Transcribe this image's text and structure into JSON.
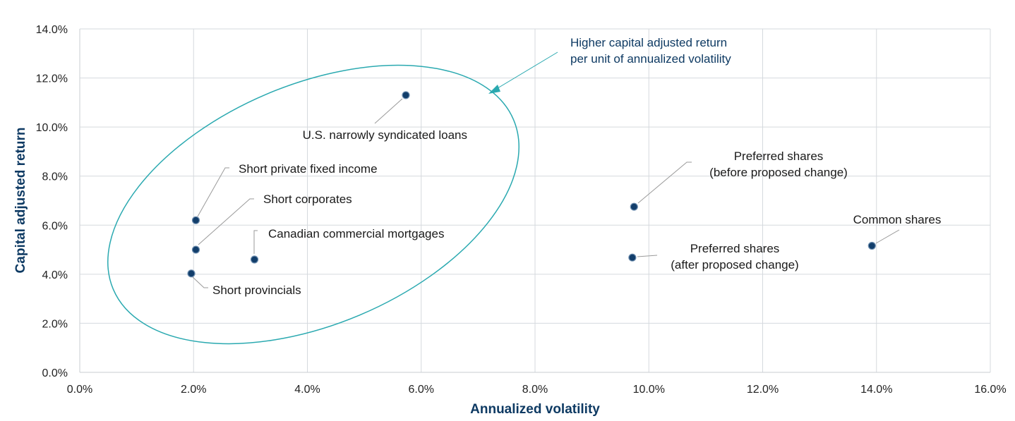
{
  "chart_data": {
    "type": "scatter",
    "xlabel": "Annualized volatility",
    "ylabel": "Capital adjusted return",
    "xlim": [
      0,
      16
    ],
    "ylim": [
      0,
      14
    ],
    "x_ticks": [
      {
        "v": 0,
        "label": "0.0%"
      },
      {
        "v": 2,
        "label": "2.0%"
      },
      {
        "v": 4,
        "label": "4.0%"
      },
      {
        "v": 6,
        "label": "6.0%"
      },
      {
        "v": 8,
        "label": "8.0%"
      },
      {
        "v": 10,
        "label": "10.0%"
      },
      {
        "v": 12,
        "label": "12.0%"
      },
      {
        "v": 14,
        "label": "14.0%"
      },
      {
        "v": 16,
        "label": "16.0%"
      }
    ],
    "y_ticks": [
      {
        "v": 0,
        "label": "0.0%"
      },
      {
        "v": 2,
        "label": "2.0%"
      },
      {
        "v": 4,
        "label": "4.0%"
      },
      {
        "v": 6,
        "label": "6.0%"
      },
      {
        "v": 8,
        "label": "8.0%"
      },
      {
        "v": 10,
        "label": "10.0%"
      },
      {
        "v": 12,
        "label": "12.0%"
      },
      {
        "v": 14,
        "label": "14.0%"
      }
    ],
    "grid": true,
    "points": [
      {
        "label": [
          "U.S. narrowly syndicated loans"
        ],
        "x": 5.73,
        "y": 11.3
      },
      {
        "label": [
          "Short private fixed income"
        ],
        "x": 2.04,
        "y": 6.2
      },
      {
        "label": [
          "Short corporates"
        ],
        "x": 2.04,
        "y": 5.0
      },
      {
        "label": [
          "Canadian commercial mortgages"
        ],
        "x": 3.07,
        "y": 4.6
      },
      {
        "label": [
          "Short provincials"
        ],
        "x": 1.96,
        "y": 4.03
      },
      {
        "label": [
          "Preferred shares",
          "(before proposed change)"
        ],
        "x": 9.74,
        "y": 6.75
      },
      {
        "label": [
          "Preferred shares",
          "(after proposed change)"
        ],
        "x": 9.71,
        "y": 4.68
      },
      {
        "label": [
          "Common shares"
        ],
        "x": 13.92,
        "y": 5.16
      }
    ],
    "annotation": {
      "text": [
        "Higher capital adjusted return",
        "per unit of annualized volatility"
      ]
    },
    "colors": {
      "point": "#123e6b",
      "ellipse": "#2aa9b0",
      "axis_title": "#0e3a63"
    }
  }
}
